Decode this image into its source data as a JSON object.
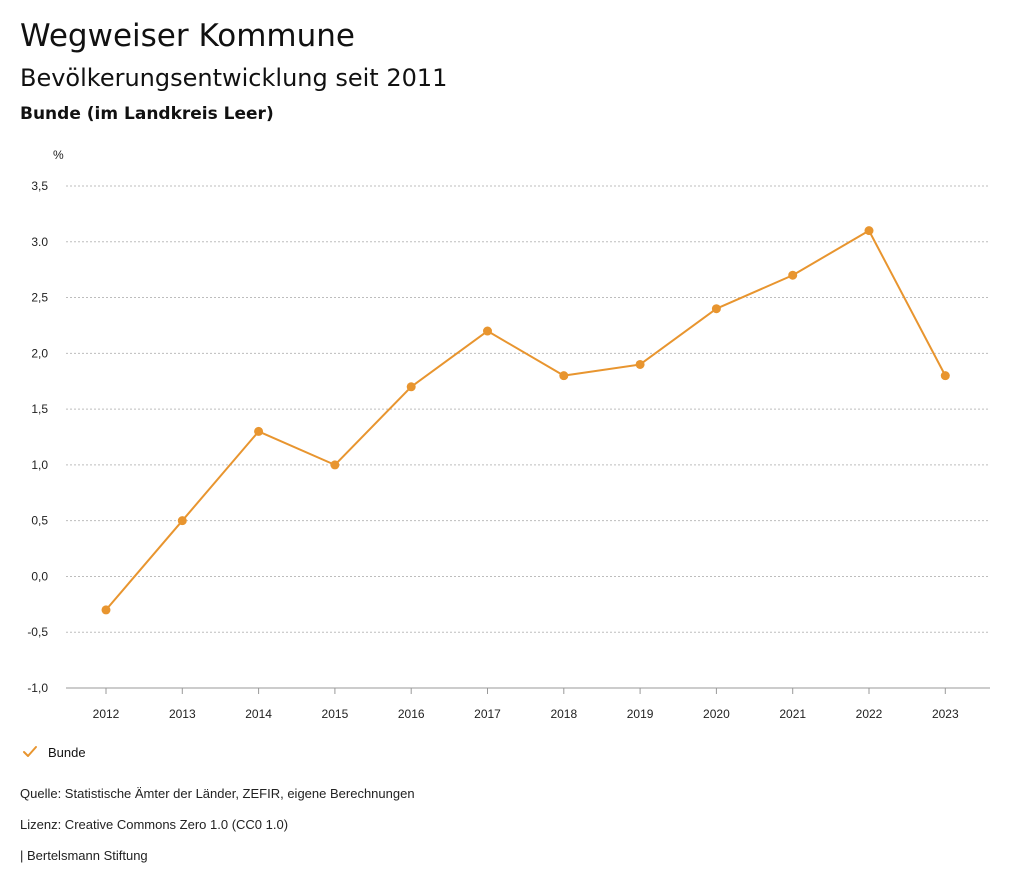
{
  "header": {
    "title": "Wegweiser Kommune",
    "subtitle": "Bevölkerungsentwicklung seit 2011",
    "region": "Bunde (im Landkreis Leer)"
  },
  "chart_data": {
    "type": "line",
    "title": "Bevölkerungsentwicklung seit 2011",
    "ylabel": "%",
    "xlabel": "",
    "categories": [
      "2012",
      "2013",
      "2014",
      "2015",
      "2016",
      "2017",
      "2018",
      "2019",
      "2020",
      "2021",
      "2022",
      "2023"
    ],
    "series": [
      {
        "name": "Bunde",
        "color": "#e8952f",
        "values": [
          -0.3,
          0.5,
          1.3,
          1.0,
          1.7,
          2.2,
          1.8,
          1.9,
          2.4,
          2.7,
          3.1,
          1.8
        ]
      }
    ],
    "ylim": [
      -1.0,
      3.5
    ],
    "yticks": [
      -1.0,
      -0.5,
      0.0,
      0.5,
      1.0,
      1.5,
      2.0,
      2.5,
      3.0,
      3.5
    ],
    "ytick_labels": [
      "-1,0",
      "-0,5",
      "0,0",
      "0,5",
      "1,0",
      "1,5",
      "2,0",
      "2,5",
      "3.0",
      "3,5"
    ],
    "grid": true,
    "legend": "bottom-left"
  },
  "legend": {
    "label": "Bunde",
    "icon": "checkmark-icon",
    "color": "#e8952f"
  },
  "footer": {
    "source": "Quelle: Statistische Ämter der Länder, ZEFIR, eigene Berechnungen",
    "license": "Lizenz: Creative Commons Zero 1.0 (CC0 1.0)",
    "publisher": "| Bertelsmann Stiftung"
  }
}
